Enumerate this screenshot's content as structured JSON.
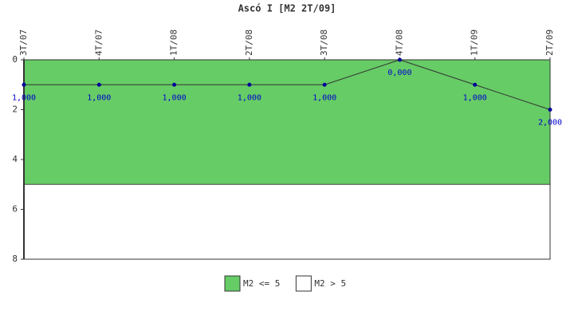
{
  "chart_data": {
    "type": "line",
    "title": "Ascó I [M2 2T/09]",
    "categories": [
      "3T/07",
      "4T/07",
      "1T/08",
      "2T/08",
      "3T/08",
      "4T/08",
      "1T/09",
      "2T/09"
    ],
    "series": [
      {
        "values": [
          1,
          1,
          1,
          1,
          1,
          0,
          1,
          2
        ],
        "value_labels": [
          "1,000",
          "1,000",
          "1,000",
          "1,000",
          "1,000",
          "0,000",
          "1,000",
          "2,000"
        ],
        "color": "#333333",
        "marker_color": "#000099"
      }
    ],
    "bands": [
      {
        "name": "M2 <= 5",
        "color": "#66cc66",
        "range": [
          0,
          5
        ]
      },
      {
        "name": "M2 > 5",
        "color": "#ffffff",
        "range": [
          5,
          8
        ]
      }
    ],
    "ylim": [
      0,
      8
    ],
    "yticks": [
      0,
      2,
      4,
      6,
      8
    ],
    "y_inverted": true
  }
}
